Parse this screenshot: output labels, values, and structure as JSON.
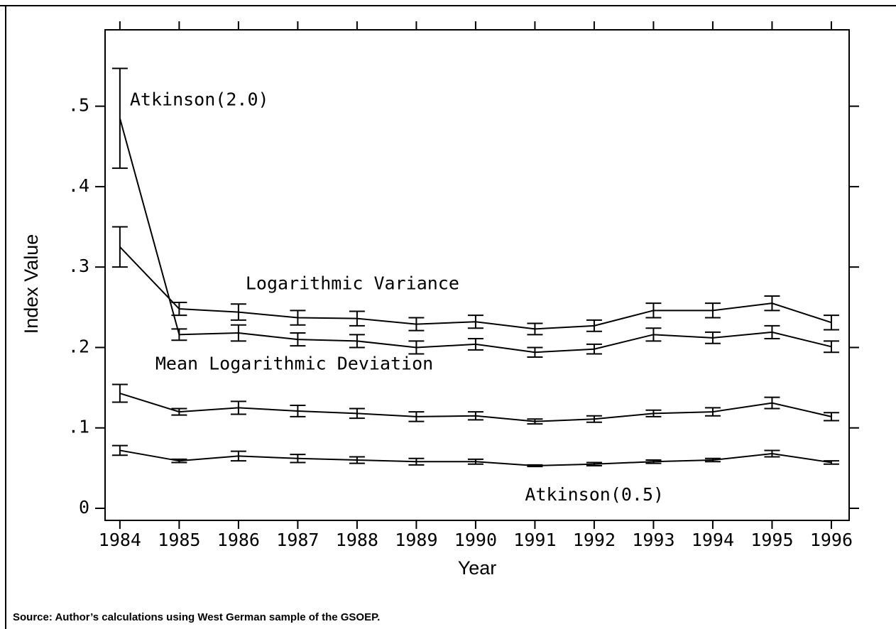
{
  "chart_data": {
    "type": "line",
    "xlabel": "Year",
    "ylabel": "Index Value",
    "source": "Source:  Author’s calculations using West German sample of the GSOEP.",
    "x": [
      1984,
      1985,
      1986,
      1987,
      1988,
      1989,
      1990,
      1991,
      1992,
      1993,
      1994,
      1995,
      1996
    ],
    "xlim": [
      1983.75,
      1996.3
    ],
    "xticks": [
      1984,
      1985,
      1986,
      1987,
      1988,
      1989,
      1990,
      1991,
      1992,
      1993,
      1994,
      1995,
      1996
    ],
    "ylim": [
      -0.015,
      0.595
    ],
    "yticks": [
      0,
      {
        "value": 0.1,
        "label": ".1"
      },
      {
        "value": 0.2,
        "label": ".2"
      },
      {
        "value": 0.3,
        "label": ".3"
      },
      {
        "value": 0.4,
        "label": ".4"
      },
      {
        "value": 0.5,
        "label": ".5"
      }
    ],
    "grid": false,
    "series": [
      {
        "name": "Atkinson(2.0)",
        "color": "#000000",
        "values": [
          0.485,
          0.216,
          0.218,
          0.21,
          0.208,
          0.2,
          0.204,
          0.194,
          0.198,
          0.216,
          0.212,
          0.219,
          0.201
        ],
        "errors": [
          0.062,
          0.007,
          0.01,
          0.008,
          0.008,
          0.008,
          0.007,
          0.006,
          0.006,
          0.008,
          0.007,
          0.008,
          0.007
        ]
      },
      {
        "name": "Logarithmic Variance",
        "color": "#000000",
        "values": [
          0.325,
          0.248,
          0.244,
          0.237,
          0.236,
          0.229,
          0.232,
          0.223,
          0.227,
          0.246,
          0.246,
          0.255,
          0.231
        ],
        "errors": [
          0.025,
          0.008,
          0.01,
          0.009,
          0.009,
          0.008,
          0.008,
          0.007,
          0.007,
          0.009,
          0.009,
          0.009,
          0.009
        ]
      },
      {
        "name": "Mean Logarithmic Deviation",
        "color": "#000000",
        "values": [
          0.143,
          0.12,
          0.125,
          0.121,
          0.118,
          0.114,
          0.115,
          0.108,
          0.111,
          0.118,
          0.12,
          0.131,
          0.114
        ],
        "errors": [
          0.011,
          0.004,
          0.008,
          0.007,
          0.006,
          0.006,
          0.005,
          0.003,
          0.004,
          0.004,
          0.005,
          0.007,
          0.005
        ]
      },
      {
        "name": "Atkinson(0.5)",
        "color": "#000000",
        "values": [
          0.072,
          0.059,
          0.065,
          0.062,
          0.06,
          0.058,
          0.058,
          0.053,
          0.055,
          0.058,
          0.06,
          0.068,
          0.057
        ],
        "errors": [
          0.006,
          0.002,
          0.006,
          0.005,
          0.004,
          0.004,
          0.003,
          0.001,
          0.002,
          0.002,
          0.002,
          0.004,
          0.002
        ]
      }
    ]
  }
}
